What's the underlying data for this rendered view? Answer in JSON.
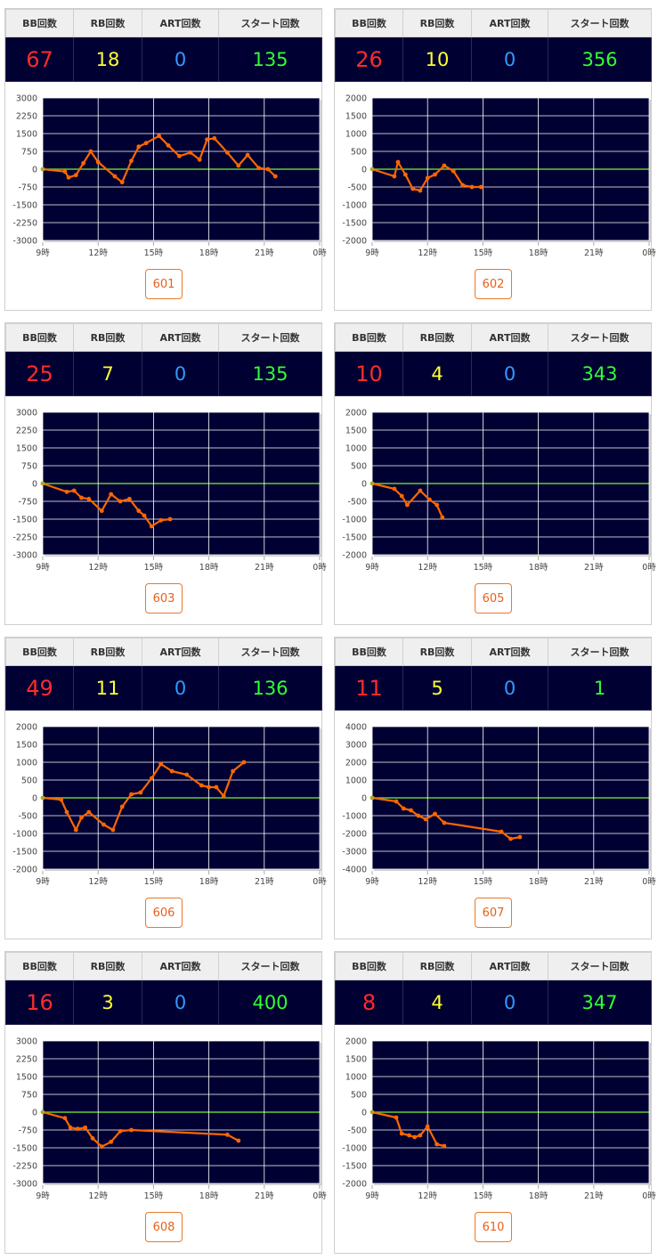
{
  "headers": {
    "bb": "BB回数",
    "rb": "RB回数",
    "art": "ART回数",
    "start": "スタート回数"
  },
  "colors": {
    "plot_bg": "#000033",
    "line": "#ff6600",
    "zero_line": "#66cc33",
    "bb": "#ff2b2b",
    "rb": "#ffff33",
    "art": "#3399ff",
    "start": "#33ff33"
  },
  "machines": [
    {
      "machine_no": "601",
      "bb": "67",
      "rb": "18",
      "art": "0",
      "start": "135",
      "chart_data": {
        "type": "line",
        "x_ticks": [
          "9時",
          "12時",
          "15時",
          "18時",
          "21時",
          "0時"
        ],
        "y_ticks": [
          "3000",
          "2250",
          "1500",
          "750",
          "0",
          "-750",
          "-1500",
          "-2250",
          "-3000"
        ],
        "xlim": [
          9,
          24
        ],
        "ylim": [
          -3000,
          3000
        ],
        "x": [
          9.0,
          10.2,
          10.4,
          10.8,
          11.2,
          11.6,
          12.0,
          12.9,
          13.3,
          13.8,
          14.2,
          14.6,
          15.3,
          15.8,
          16.4,
          17.0,
          17.5,
          17.9,
          18.3,
          19.0,
          19.6,
          20.1,
          20.7,
          21.2,
          21.6
        ],
        "y": [
          0,
          -100,
          -350,
          -250,
          250,
          750,
          300,
          -300,
          -550,
          350,
          950,
          1100,
          1400,
          1000,
          550,
          700,
          400,
          1250,
          1300,
          700,
          150,
          600,
          50,
          0,
          -300
        ]
      }
    },
    {
      "machine_no": "602",
      "bb": "26",
      "rb": "10",
      "art": "0",
      "start": "356",
      "chart_data": {
        "type": "line",
        "x_ticks": [
          "9時",
          "12時",
          "15時",
          "18時",
          "21時",
          "0時"
        ],
        "y_ticks": [
          "2000",
          "1500",
          "1000",
          "500",
          "0",
          "-500",
          "-1000",
          "-1500",
          "-2000"
        ],
        "xlim": [
          9,
          24
        ],
        "ylim": [
          -2000,
          2000
        ],
        "x": [
          9.0,
          10.2,
          10.4,
          10.8,
          11.2,
          11.6,
          12.0,
          12.4,
          12.9,
          13.4,
          13.9,
          14.4,
          14.9
        ],
        "y": [
          0,
          -200,
          200,
          -150,
          -550,
          -600,
          -250,
          -150,
          100,
          -50,
          -450,
          -500,
          -500
        ]
      }
    },
    {
      "machine_no": "603",
      "bb": "25",
      "rb": "7",
      "art": "0",
      "start": "135",
      "chart_data": {
        "type": "line",
        "x_ticks": [
          "9時",
          "12時",
          "15時",
          "18時",
          "21時",
          "0時"
        ],
        "y_ticks": [
          "3000",
          "2250",
          "1500",
          "750",
          "0",
          "-750",
          "-1500",
          "-2250",
          "-3000"
        ],
        "xlim": [
          9,
          24
        ],
        "ylim": [
          -3000,
          3000
        ],
        "x": [
          9.0,
          10.3,
          10.7,
          11.1,
          11.5,
          12.2,
          12.7,
          13.2,
          13.7,
          14.2,
          14.5,
          14.9,
          15.4,
          15.9
        ],
        "y": [
          0,
          -350,
          -300,
          -600,
          -650,
          -1150,
          -450,
          -750,
          -650,
          -1150,
          -1350,
          -1800,
          -1550,
          -1500
        ]
      }
    },
    {
      "machine_no": "605",
      "bb": "10",
      "rb": "4",
      "art": "0",
      "start": "343",
      "chart_data": {
        "type": "line",
        "x_ticks": [
          "9時",
          "12時",
          "15時",
          "18時",
          "21時",
          "0時"
        ],
        "y_ticks": [
          "2000",
          "1500",
          "1000",
          "500",
          "0",
          "-500",
          "-1000",
          "-1500",
          "-2000"
        ],
        "xlim": [
          9,
          24
        ],
        "ylim": [
          -2000,
          2000
        ],
        "x": [
          9.0,
          10.2,
          10.6,
          10.9,
          11.6,
          12.1,
          12.5,
          12.8
        ],
        "y": [
          0,
          -150,
          -350,
          -600,
          -200,
          -450,
          -600,
          -950
        ]
      }
    },
    {
      "machine_no": "606",
      "bb": "49",
      "rb": "11",
      "art": "0",
      "start": "136",
      "chart_data": {
        "type": "line",
        "x_ticks": [
          "9時",
          "12時",
          "15時",
          "18時",
          "21時",
          "0時"
        ],
        "y_ticks": [
          "2000",
          "1500",
          "1000",
          "500",
          "0",
          "-500",
          "-1000",
          "-1500",
          "-2000"
        ],
        "xlim": [
          9,
          24
        ],
        "ylim": [
          -2000,
          2000
        ],
        "x": [
          9.0,
          10.0,
          10.3,
          10.8,
          11.1,
          11.5,
          12.3,
          12.8,
          13.3,
          13.8,
          14.3,
          14.9,
          15.4,
          16.0,
          16.8,
          17.6,
          18.0,
          18.4,
          18.8,
          19.3,
          19.9
        ],
        "y": [
          0,
          -50,
          -400,
          -900,
          -550,
          -400,
          -750,
          -900,
          -250,
          100,
          150,
          550,
          950,
          750,
          650,
          350,
          300,
          300,
          50,
          750,
          1000
        ]
      }
    },
    {
      "machine_no": "607",
      "bb": "11",
      "rb": "5",
      "art": "0",
      "start": "1",
      "chart_data": {
        "type": "line",
        "x_ticks": [
          "9時",
          "12時",
          "15時",
          "18時",
          "21時",
          "0時"
        ],
        "y_ticks": [
          "4000",
          "3000",
          "2000",
          "1000",
          "0",
          "-1000",
          "-2000",
          "-3000",
          "-4000"
        ],
        "xlim": [
          9,
          24
        ],
        "ylim": [
          -4000,
          4000
        ],
        "x": [
          9.0,
          10.3,
          10.7,
          11.1,
          11.5,
          11.9,
          12.4,
          12.9,
          16.0,
          16.5,
          17.0
        ],
        "y": [
          0,
          -200,
          -600,
          -700,
          -1000,
          -1200,
          -900,
          -1400,
          -1900,
          -2300,
          -2200
        ]
      }
    },
    {
      "machine_no": "608",
      "bb": "16",
      "rb": "3",
      "art": "0",
      "start": "400",
      "chart_data": {
        "type": "line",
        "x_ticks": [
          "9時",
          "12時",
          "15時",
          "18時",
          "21時",
          "0時"
        ],
        "y_ticks": [
          "3000",
          "2250",
          "1500",
          "750",
          "0",
          "-750",
          "-1500",
          "-2250",
          "-3000"
        ],
        "xlim": [
          9,
          24
        ],
        "ylim": [
          -3000,
          3000
        ],
        "x": [
          9.0,
          10.2,
          10.5,
          10.9,
          11.3,
          11.7,
          12.2,
          12.7,
          13.2,
          13.8,
          19.0,
          19.6
        ],
        "y": [
          0,
          -250,
          -650,
          -700,
          -650,
          -1100,
          -1450,
          -1250,
          -800,
          -750,
          -950,
          -1200
        ]
      }
    },
    {
      "machine_no": "610",
      "bb": "8",
      "rb": "4",
      "art": "0",
      "start": "347",
      "chart_data": {
        "type": "line",
        "x_ticks": [
          "9時",
          "12時",
          "15時",
          "18時",
          "21時",
          "0時"
        ],
        "y_ticks": [
          "2000",
          "1500",
          "1000",
          "500",
          "0",
          "-500",
          "-1000",
          "-1500",
          "-2000"
        ],
        "xlim": [
          9,
          24
        ],
        "ylim": [
          -2000,
          2000
        ],
        "x": [
          9.0,
          10.3,
          10.6,
          11.0,
          11.3,
          11.6,
          12.0,
          12.5,
          12.9
        ],
        "y": [
          0,
          -150,
          -600,
          -650,
          -700,
          -650,
          -400,
          -900,
          -950
        ]
      }
    }
  ]
}
